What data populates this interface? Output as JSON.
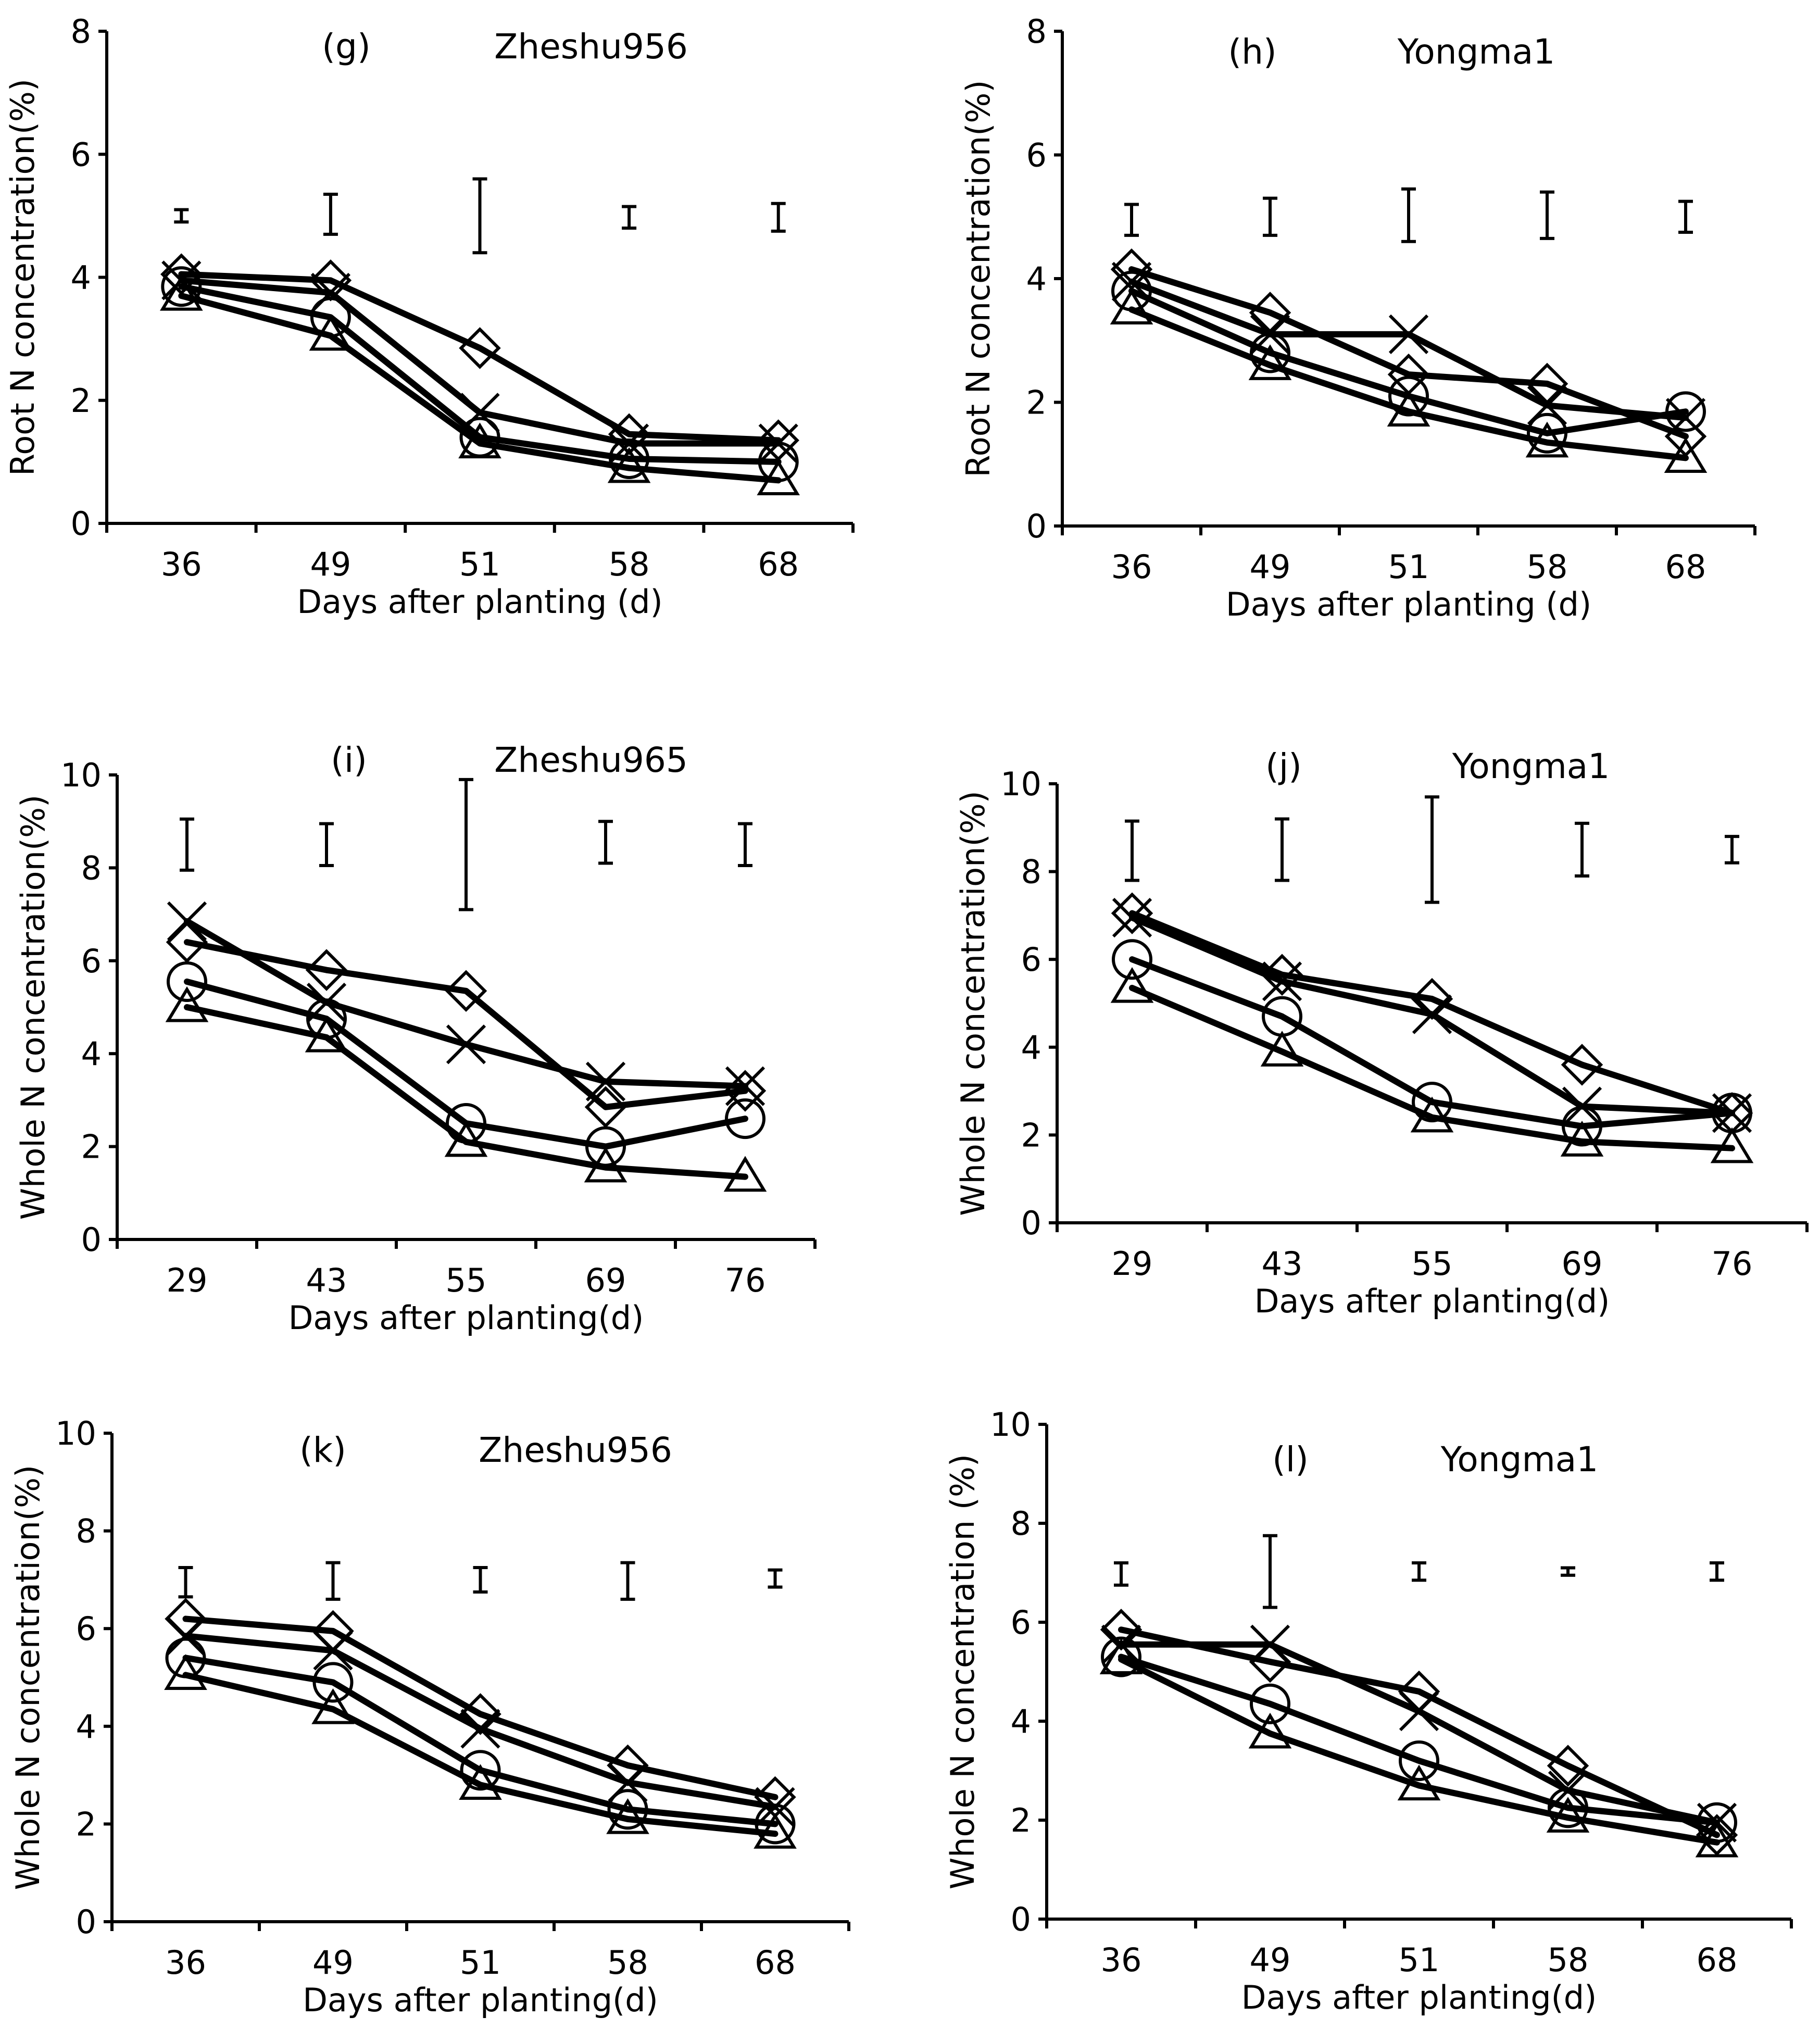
{
  "chart_data": [
    {
      "id": "g",
      "type": "line",
      "panel_label": "(g)",
      "cultivar": "Zheshu956",
      "ylabel": "Root N concentration(%)",
      "xlabel": "Days after planting (d)",
      "categories": [
        "36",
        "49",
        "51",
        "58",
        "68"
      ],
      "ylim": [
        0,
        8
      ],
      "yticks": [
        0,
        2,
        4,
        6,
        8
      ],
      "series": [
        {
          "name": "diamond",
          "marker": "diamond",
          "values": [
            4.05,
            3.95,
            2.85,
            1.45,
            1.35
          ]
        },
        {
          "name": "cross",
          "marker": "cross",
          "values": [
            3.95,
            3.75,
            1.8,
            1.3,
            1.3
          ]
        },
        {
          "name": "circle",
          "marker": "circle",
          "values": [
            3.85,
            3.35,
            1.4,
            1.05,
            1.0
          ]
        },
        {
          "name": "triangle",
          "marker": "triangle",
          "values": [
            3.7,
            3.05,
            1.3,
            0.9,
            0.7
          ]
        }
      ],
      "error_bars": [
        [
          4.9,
          5.1
        ],
        [
          4.7,
          5.35
        ],
        [
          4.4,
          5.6
        ],
        [
          4.8,
          5.15
        ],
        [
          4.75,
          5.2
        ]
      ]
    },
    {
      "id": "h",
      "type": "line",
      "panel_label": "(h)",
      "cultivar": "Yongma1",
      "ylabel": "Root N concentration(%)",
      "xlabel": "Days after planting (d)",
      "categories": [
        "36",
        "49",
        "51",
        "58",
        "68"
      ],
      "ylim": [
        0,
        8
      ],
      "yticks": [
        0,
        2,
        4,
        6,
        8
      ],
      "series": [
        {
          "name": "diamond",
          "marker": "diamond",
          "values": [
            4.15,
            3.45,
            2.45,
            2.3,
            1.45
          ]
        },
        {
          "name": "cross",
          "marker": "cross",
          "values": [
            3.95,
            3.1,
            3.1,
            1.95,
            1.75
          ]
        },
        {
          "name": "circle",
          "marker": "circle",
          "values": [
            3.8,
            2.8,
            2.1,
            1.5,
            1.85
          ]
        },
        {
          "name": "triangle",
          "marker": "triangle",
          "values": [
            3.5,
            2.6,
            1.85,
            1.35,
            1.1
          ]
        }
      ],
      "error_bars": [
        [
          4.7,
          5.2
        ],
        [
          4.7,
          5.3
        ],
        [
          4.6,
          5.45
        ],
        [
          4.65,
          5.4
        ],
        [
          4.75,
          5.25
        ]
      ]
    },
    {
      "id": "i",
      "type": "line",
      "panel_label": "(i)",
      "cultivar": "Zheshu965",
      "ylabel": "Whole N concentration(%)",
      "xlabel": "Days after planting(d)",
      "categories": [
        "29",
        "43",
        "55",
        "69",
        "76"
      ],
      "ylim": [
        0,
        10
      ],
      "yticks": [
        0,
        2,
        4,
        6,
        8,
        10
      ],
      "series": [
        {
          "name": "diamond",
          "marker": "diamond",
          "values": [
            6.4,
            5.8,
            5.35,
            2.85,
            3.2
          ]
        },
        {
          "name": "cross",
          "marker": "cross",
          "values": [
            6.85,
            5.1,
            4.2,
            3.4,
            3.3
          ]
        },
        {
          "name": "circle",
          "marker": "circle",
          "values": [
            5.55,
            4.75,
            2.5,
            2.0,
            2.6
          ]
        },
        {
          "name": "triangle",
          "marker": "triangle",
          "values": [
            5.0,
            4.35,
            2.1,
            1.55,
            1.35
          ]
        }
      ],
      "error_bars": [
        [
          7.95,
          9.05
        ],
        [
          8.05,
          8.95
        ],
        [
          7.1,
          9.9
        ],
        [
          8.1,
          9.0
        ],
        [
          8.05,
          8.95
        ]
      ]
    },
    {
      "id": "j",
      "type": "line",
      "panel_label": "(j)",
      "cultivar": "Yongma1",
      "ylabel": "Whole N concentration(%)",
      "xlabel": "Days after planting(d)",
      "categories": [
        "29",
        "43",
        "55",
        "69",
        "76"
      ],
      "ylim": [
        0,
        10
      ],
      "yticks": [
        0,
        2,
        4,
        6,
        8,
        10
      ],
      "series": [
        {
          "name": "diamond",
          "marker": "diamond",
          "values": [
            7.05,
            5.65,
            5.1,
            3.6,
            2.5
          ]
        },
        {
          "name": "cross",
          "marker": "cross",
          "values": [
            6.95,
            5.5,
            4.75,
            2.65,
            2.5
          ]
        },
        {
          "name": "circle",
          "marker": "circle",
          "values": [
            6.0,
            4.7,
            2.75,
            2.2,
            2.5
          ]
        },
        {
          "name": "triangle",
          "marker": "triangle",
          "values": [
            5.35,
            3.9,
            2.4,
            1.85,
            1.7
          ]
        }
      ],
      "error_bars": [
        [
          7.8,
          9.15
        ],
        [
          7.8,
          9.2
        ],
        [
          7.3,
          9.7
        ],
        [
          7.9,
          9.1
        ],
        [
          8.2,
          8.8
        ]
      ]
    },
    {
      "id": "k",
      "type": "line",
      "panel_label": "(k)",
      "cultivar": "Zheshu956",
      "ylabel": "Whole N concentration(%)",
      "xlabel": "Days after planting(d)",
      "categories": [
        "36",
        "49",
        "51",
        "58",
        "68"
      ],
      "ylim": [
        0,
        10
      ],
      "yticks": [
        0,
        2,
        4,
        6,
        8,
        10
      ],
      "series": [
        {
          "name": "diamond",
          "marker": "diamond",
          "values": [
            6.2,
            5.95,
            4.25,
            3.2,
            2.55
          ]
        },
        {
          "name": "cross",
          "marker": "cross",
          "values": [
            5.85,
            5.55,
            3.95,
            2.85,
            2.35
          ]
        },
        {
          "name": "circle",
          "marker": "circle",
          "values": [
            5.4,
            4.9,
            3.1,
            2.3,
            2.0
          ]
        },
        {
          "name": "triangle",
          "marker": "triangle",
          "values": [
            5.05,
            4.35,
            2.8,
            2.1,
            1.8
          ]
        }
      ],
      "error_bars": [
        [
          6.65,
          7.25
        ],
        [
          6.6,
          7.35
        ],
        [
          6.75,
          7.25
        ],
        [
          6.6,
          7.35
        ],
        [
          6.85,
          7.2
        ]
      ]
    },
    {
      "id": "l",
      "type": "line",
      "panel_label": "(l)",
      "cultivar": "Yongma1",
      "ylabel": "Whole N  concentration (%)",
      "xlabel": "Days after planting(d)",
      "categories": [
        "36",
        "49",
        "51",
        "58",
        "68"
      ],
      "ylim": [
        0,
        10
      ],
      "yticks": [
        0,
        2,
        4,
        6,
        8,
        10
      ],
      "series": [
        {
          "name": "diamond",
          "marker": "diamond",
          "values": [
            5.85,
            5.2,
            4.6,
            3.1,
            1.7
          ]
        },
        {
          "name": "cross",
          "marker": "cross",
          "values": [
            5.55,
            5.55,
            4.2,
            2.6,
            1.95
          ]
        },
        {
          "name": "circle",
          "marker": "circle",
          "values": [
            5.3,
            4.35,
            3.2,
            2.25,
            1.95
          ]
        },
        {
          "name": "triangle",
          "marker": "triangle",
          "values": [
            5.25,
            3.75,
            2.7,
            2.05,
            1.55
          ]
        }
      ],
      "error_bars": [
        [
          6.75,
          7.2
        ],
        [
          6.3,
          7.75
        ],
        [
          6.85,
          7.2
        ],
        [
          6.95,
          7.1
        ],
        [
          6.85,
          7.2
        ]
      ]
    }
  ]
}
